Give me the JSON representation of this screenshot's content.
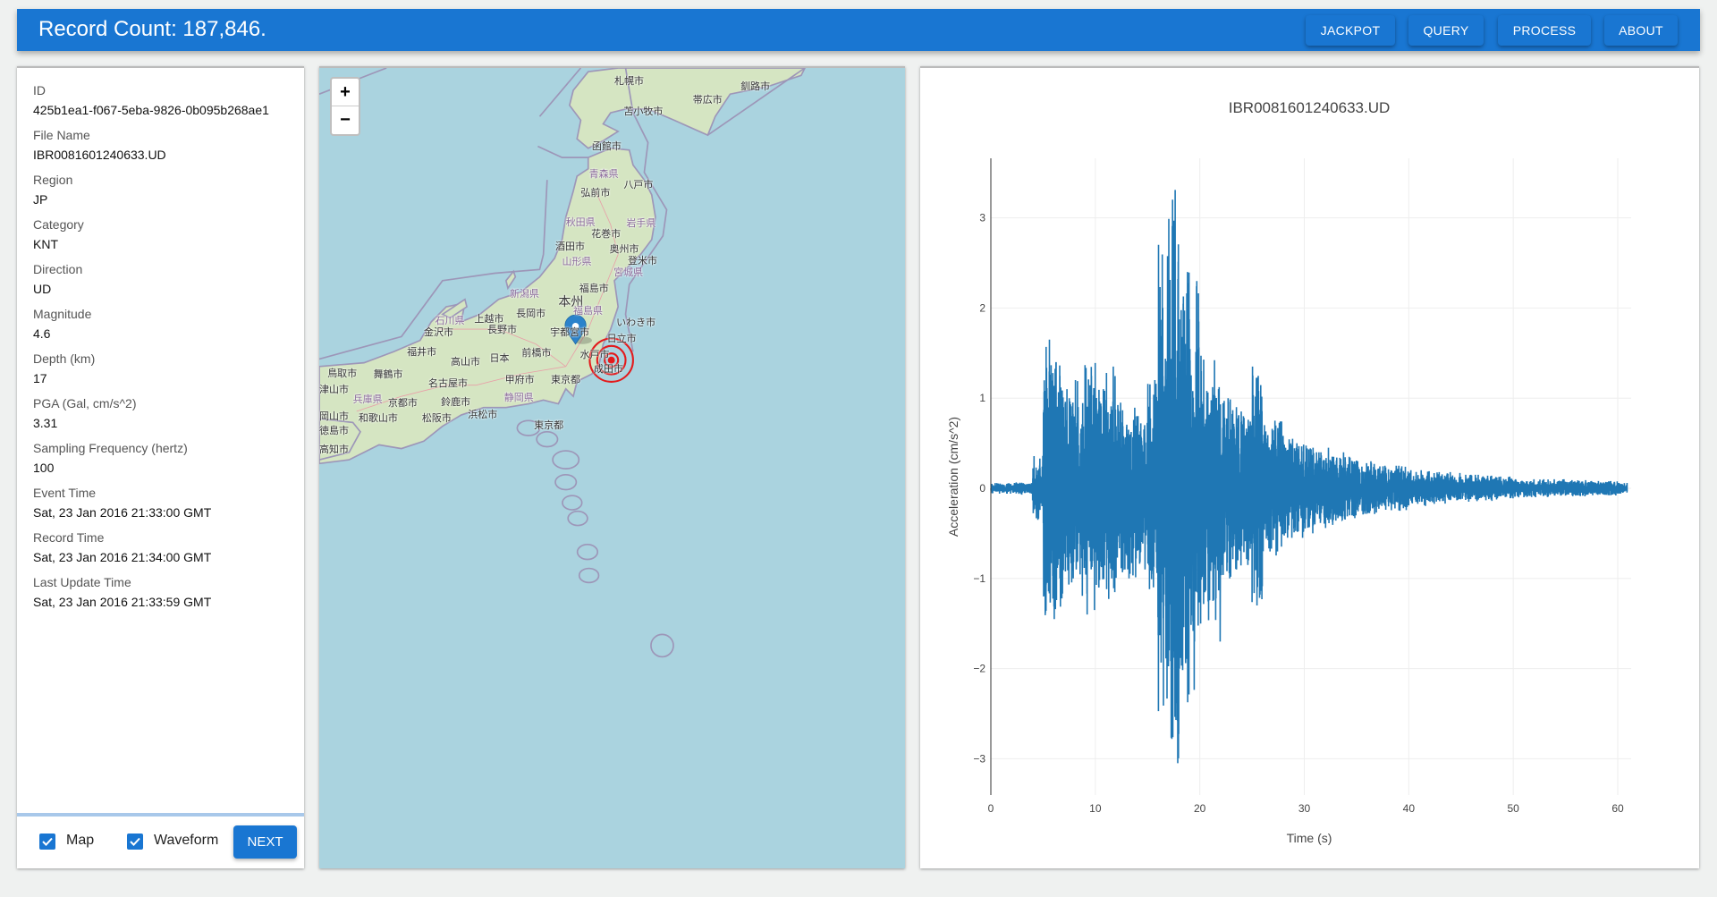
{
  "header": {
    "title": "Record Count: 187,846.",
    "buttons": [
      "JACKPOT",
      "QUERY",
      "PROCESS",
      "ABOUT"
    ]
  },
  "record": {
    "fields": [
      {
        "label": "ID",
        "value": "425b1ea1-f067-5eba-9826-0b095b268ae1"
      },
      {
        "label": "File Name",
        "value": "IBR0081601240633.UD"
      },
      {
        "label": "Region",
        "value": "JP"
      },
      {
        "label": "Category",
        "value": "KNT"
      },
      {
        "label": "Direction",
        "value": "UD"
      },
      {
        "label": "Magnitude",
        "value": "4.6"
      },
      {
        "label": "Depth (km)",
        "value": "17"
      },
      {
        "label": "PGA (Gal, cm/s^2)",
        "value": "3.31"
      },
      {
        "label": "Sampling Frequency (hertz)",
        "value": "100"
      },
      {
        "label": "Event Time",
        "value": "Sat, 23 Jan 2016 21:33:00 GMT"
      },
      {
        "label": "Record Time",
        "value": "Sat, 23 Jan 2016 21:34:00 GMT"
      },
      {
        "label": "Last Update Time",
        "value": "Sat, 23 Jan 2016 21:33:59 GMT"
      }
    ],
    "controls": {
      "map_label": "Map",
      "map_checked": true,
      "waveform_label": "Waveform",
      "waveform_checked": true,
      "next_label": "NEXT"
    }
  },
  "map": {
    "zoom_in": "+",
    "zoom_out": "−",
    "colors": {
      "sea": "#aad3df",
      "land": "#d5e5c2",
      "border": "#9d96b8",
      "marker": "#2b82cb",
      "epicenter": "#e31a1c"
    },
    "labels": [
      "札幌市",
      "釧路市",
      "帯広市",
      "苫小牧市",
      "函館市",
      "青森県",
      "八戸市",
      "弘前市",
      "秋田県",
      "岩手県",
      "花巻市",
      "酒田市",
      "奥州市",
      "登米市",
      "山形県",
      "宮城県",
      "新潟県",
      "福島市",
      "本州",
      "福島県",
      "長岡市",
      "いわき市",
      "石川県",
      "上越市",
      "金沢市",
      "長野市",
      "宇都宮市",
      "日立市",
      "福井市",
      "前橋市",
      "水戸市",
      "高山市",
      "日本",
      "鳥取市",
      "舞鶴市",
      "名古屋市",
      "甲府市",
      "成田市",
      "東京都",
      "津山市",
      "兵庫県",
      "京都市",
      "鈴鹿市",
      "静岡県",
      "岡山市",
      "和歌山市",
      "松阪市",
      "浜松市",
      "東京都",
      "徳島市",
      "高知市"
    ]
  },
  "chart_data": {
    "type": "line",
    "title": "IBR0081601240633.UD",
    "xlabel": "Time (s)",
    "ylabel": "Acceleration (cm/s^2)",
    "xlim": [
      0,
      61
    ],
    "ylim": [
      -3.5,
      3.6
    ],
    "xticks": [
      0,
      10,
      20,
      30,
      40,
      50,
      60
    ],
    "yticks": [
      -3,
      -2,
      -1,
      0,
      1,
      2,
      3
    ],
    "ytick_labels": [
      "−3",
      "−2",
      "−1",
      "0",
      "1",
      "2",
      "3"
    ],
    "grid": true,
    "color": "#1f77b4",
    "sampling_hz": 100,
    "envelope_per_second": {
      "columns": [
        "t_start",
        "max",
        "min"
      ],
      "rows": [
        [
          0,
          0.05,
          -0.06
        ],
        [
          1,
          0.05,
          -0.06
        ],
        [
          2,
          0.06,
          -0.07
        ],
        [
          3,
          0.06,
          -0.06
        ],
        [
          4,
          0.36,
          -0.25
        ],
        [
          5,
          1.65,
          -1.2
        ],
        [
          6,
          1.4,
          -1.45
        ],
        [
          7,
          1.1,
          -1.0
        ],
        [
          8,
          1.2,
          -0.9
        ],
        [
          9,
          1.0,
          -1.4
        ],
        [
          10,
          1.1,
          -1.1
        ],
        [
          11,
          1.35,
          -1.0
        ],
        [
          12,
          0.95,
          -0.9
        ],
        [
          13,
          0.8,
          -1.0
        ],
        [
          14,
          0.7,
          -0.9
        ],
        [
          15,
          1.2,
          -0.95
        ],
        [
          16,
          2.7,
          -1.7
        ],
        [
          17,
          3.31,
          -3.05
        ],
        [
          18,
          2.4,
          -2.0
        ],
        [
          19,
          2.3,
          -1.7
        ],
        [
          20,
          1.3,
          -1.5
        ],
        [
          21,
          1.1,
          -1.7
        ],
        [
          22,
          1.0,
          -1.0
        ],
        [
          23,
          0.9,
          -0.9
        ],
        [
          24,
          0.8,
          -0.85
        ],
        [
          25,
          1.35,
          -1.3
        ],
        [
          26,
          0.7,
          -0.7
        ],
        [
          27,
          0.75,
          -0.7
        ],
        [
          28,
          0.55,
          -0.55
        ],
        [
          29,
          0.5,
          -0.55
        ],
        [
          30,
          0.45,
          -0.5
        ],
        [
          31,
          0.4,
          -0.4
        ],
        [
          32,
          0.45,
          -0.35
        ],
        [
          33,
          0.4,
          -0.35
        ],
        [
          34,
          0.35,
          -0.3
        ],
        [
          35,
          0.3,
          -0.25
        ],
        [
          36,
          0.3,
          -0.25
        ],
        [
          37,
          0.25,
          -0.2
        ],
        [
          38,
          0.25,
          -0.2
        ],
        [
          39,
          0.25,
          -0.2
        ],
        [
          40,
          0.2,
          -0.15
        ],
        [
          41,
          0.2,
          -0.15
        ],
        [
          42,
          0.18,
          -0.15
        ],
        [
          43,
          0.18,
          -0.14
        ],
        [
          44,
          0.17,
          -0.13
        ],
        [
          45,
          0.15,
          -0.12
        ],
        [
          46,
          0.15,
          -0.12
        ],
        [
          47,
          0.14,
          -0.12
        ],
        [
          48,
          0.13,
          -0.11
        ],
        [
          49,
          0.13,
          -0.11
        ],
        [
          50,
          0.1,
          -0.08
        ],
        [
          51,
          0.1,
          -0.08
        ],
        [
          52,
          0.1,
          -0.08
        ],
        [
          53,
          0.1,
          -0.08
        ],
        [
          54,
          0.1,
          -0.08
        ],
        [
          55,
          0.09,
          -0.08
        ],
        [
          56,
          0.09,
          -0.08
        ],
        [
          57,
          0.08,
          -0.07
        ],
        [
          58,
          0.08,
          -0.07
        ],
        [
          59,
          0.08,
          -0.07
        ],
        [
          60,
          0.06,
          -0.05
        ]
      ]
    }
  }
}
